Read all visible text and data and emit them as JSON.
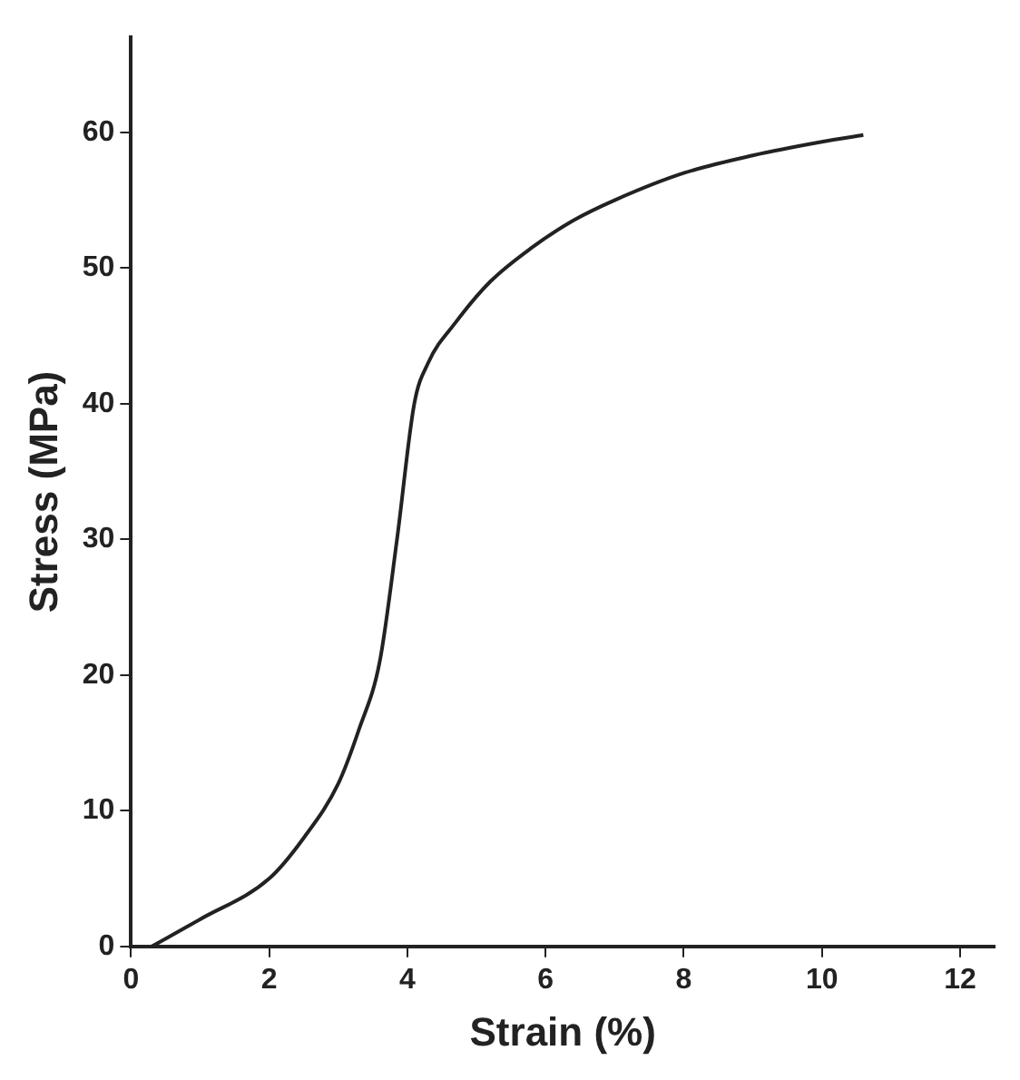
{
  "chart_data": {
    "type": "line",
    "xlabel": "Strain (%)",
    "ylabel": "Stress (MPa)",
    "series": [
      {
        "color": "#222222",
        "x": [
          0.3,
          1,
          2,
          2.5,
          3,
          3.3,
          3.6,
          3.85,
          4.1,
          4.3,
          4.7,
          5.2,
          5.8,
          6.4,
          7,
          8,
          9,
          10,
          10.6
        ],
        "values": [
          0,
          2,
          5,
          8,
          12,
          16,
          21,
          30,
          40,
          43,
          46,
          49,
          51.5,
          53.5,
          55,
          57,
          58.3,
          59.3,
          59.8
        ]
      }
    ],
    "xlim": [
      0,
      12.5
    ],
    "xticks": [
      0,
      2,
      4,
      6,
      8,
      10,
      12
    ],
    "ylim": [
      0,
      67
    ],
    "yticks": [
      0,
      10,
      20,
      30,
      40,
      50,
      60
    ],
    "grid": false,
    "legend": false,
    "marker": "none",
    "line_style": "solid"
  }
}
